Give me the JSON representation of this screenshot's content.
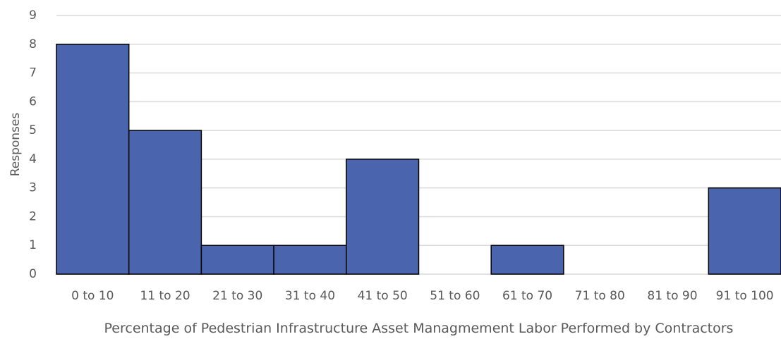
{
  "chart_data": {
    "type": "bar",
    "categories": [
      "0 to 10",
      "11 to 20",
      "21 to 30",
      "31 to 40",
      "41 to 50",
      "51 to 60",
      "61 to 70",
      "71 to 80",
      "81 to 90",
      "91 to 100"
    ],
    "values": [
      8,
      5,
      1,
      1,
      4,
      0,
      1,
      0,
      0,
      3
    ],
    "color": "#4a65ad",
    "ylim": [
      0,
      9
    ],
    "yticks": [
      0,
      1,
      2,
      3,
      4,
      5,
      6,
      7,
      8,
      9
    ],
    "grid": true,
    "y_label": "Responses",
    "x_label": "Percentage of Pedestrian Infrastructure Asset Managmement Labor Performed by Contractors"
  }
}
